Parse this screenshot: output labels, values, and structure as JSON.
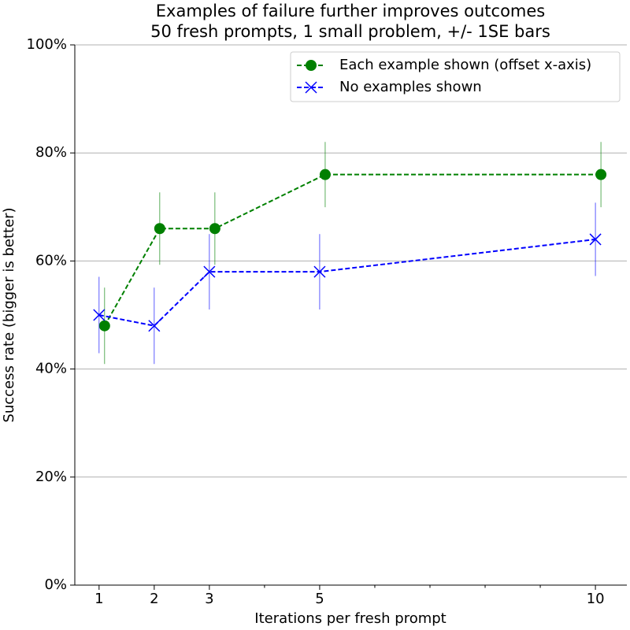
{
  "chart_data": {
    "type": "line",
    "title": "Examples of failure further improves outcomes",
    "subtitle": "50 fresh prompts, 1 small problem, +/- 1SE bars",
    "x_label": "Iterations per fresh prompt",
    "y_label": "Success rate (bigger is better)",
    "xlim": [
      0.56,
      10.57
    ],
    "xticks": [
      1,
      2,
      3,
      5,
      10
    ],
    "xminorticks": [
      4,
      6,
      7,
      8,
      9
    ],
    "ylim": [
      0,
      100
    ],
    "yticks": [
      {
        "value": 0,
        "label": "0%"
      },
      {
        "value": 20,
        "label": "20%"
      },
      {
        "value": 40,
        "label": "40%"
      },
      {
        "value": 60,
        "label": "60%"
      },
      {
        "value": 80,
        "label": "80%"
      },
      {
        "value": 100,
        "label": "100%"
      }
    ],
    "grid": "y",
    "legend": "upper right",
    "series": [
      {
        "name": "Each example shown (offset x-axis)",
        "color": "#008000",
        "marker": "circle",
        "x": [
          1.1,
          2.1,
          3.1,
          5.1,
          10.1
        ],
        "values": [
          48,
          66,
          66,
          76,
          76
        ],
        "errors": [
          7.07,
          6.7,
          6.7,
          6.04,
          6.04
        ]
      },
      {
        "name": "No examples shown",
        "color": "#0000ff",
        "marker": "x",
        "x": [
          1,
          2,
          3,
          5,
          10
        ],
        "values": [
          50,
          48,
          58,
          58,
          64
        ],
        "errors": [
          7.07,
          7.07,
          6.98,
          6.98,
          6.79
        ]
      }
    ]
  }
}
